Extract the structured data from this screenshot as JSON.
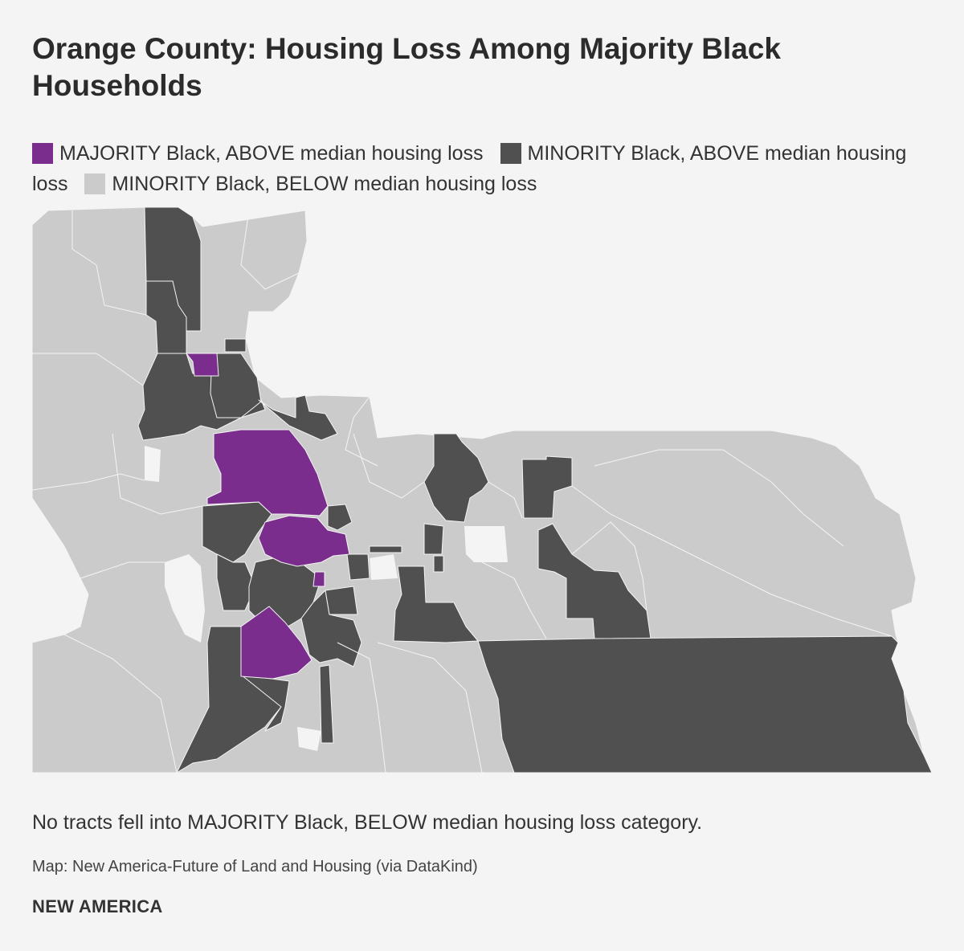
{
  "title": "Orange County: Housing Loss Among Majority Black Households",
  "legend": [
    {
      "label": "MAJORITY Black, ABOVE median housing loss",
      "color": "#7b2d8e"
    },
    {
      "label": "MINORITY Black, ABOVE median housing loss",
      "color": "#505050"
    },
    {
      "label": "MINORITY Black, BELOW median housing loss",
      "color": "#cbcbcb"
    }
  ],
  "note": "No tracts fell into MAJORITY Black, BELOW median housing loss category.",
  "source": "Map: New America-Future of Land and Housing (via DataKind)",
  "brand": "NEW AMERICA",
  "colors": {
    "background": "#f4f4f4",
    "majority_above": "#7b2d8e",
    "minority_above": "#505050",
    "minority_below": "#cbcbcb"
  }
}
